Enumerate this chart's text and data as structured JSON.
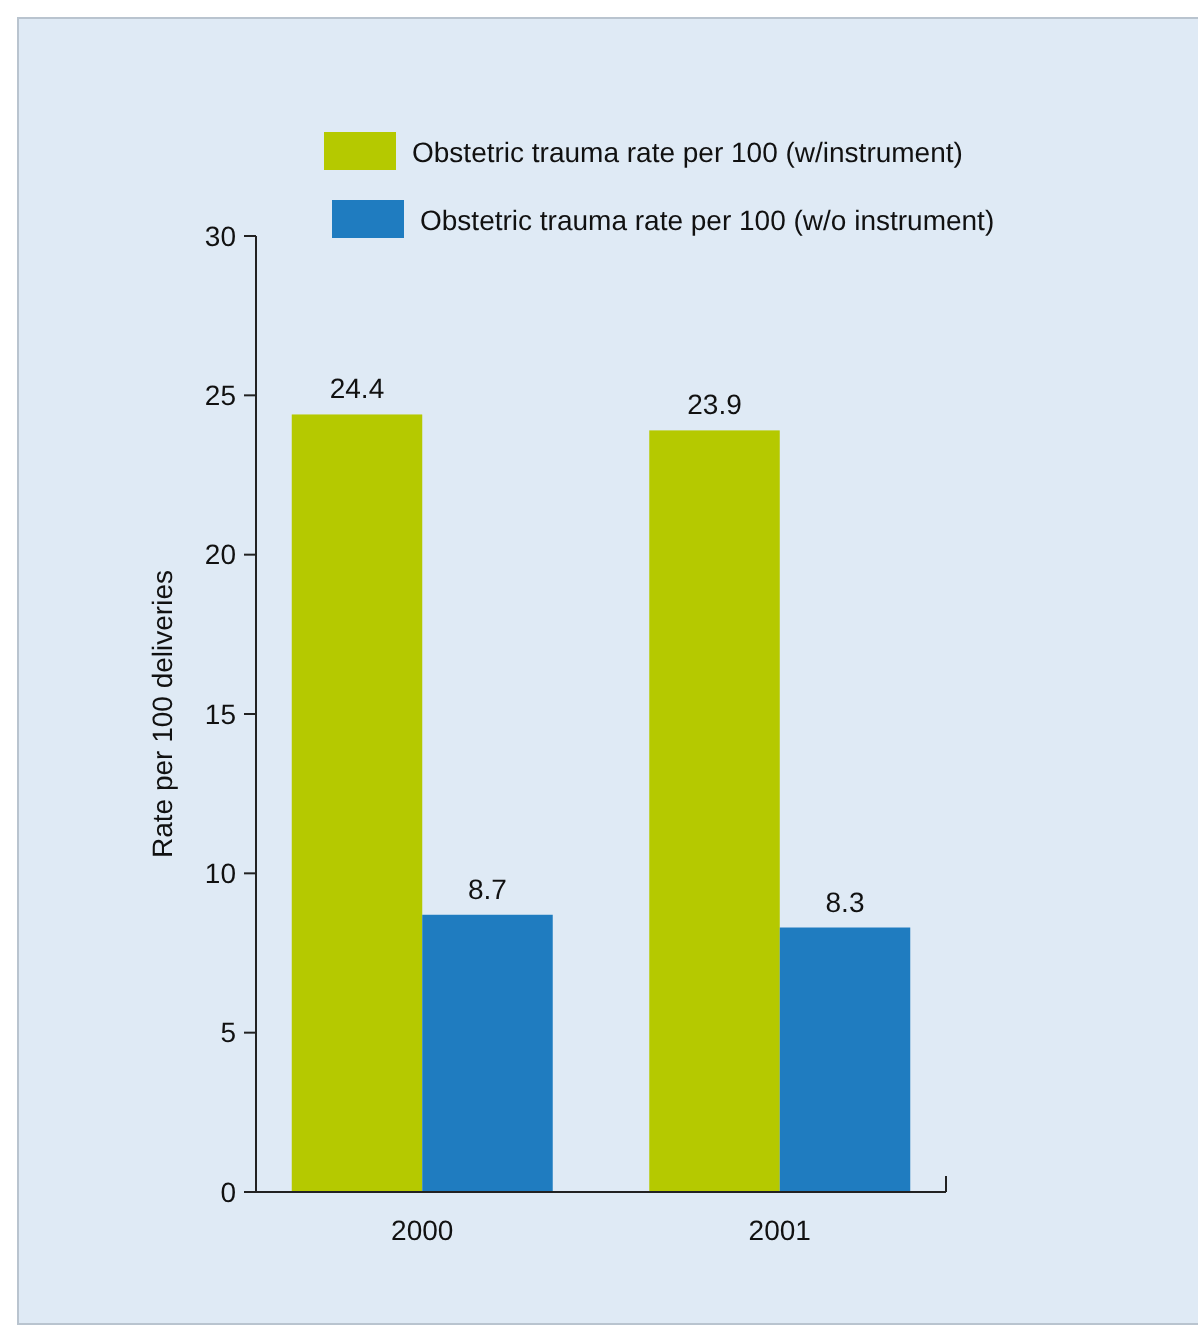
{
  "chart_data": {
    "type": "bar",
    "ylabel": "Rate per 100 deliveries",
    "categories": [
      "2000",
      "2001"
    ],
    "series": [
      {
        "name": "Obstetric trauma rate per 100 (w/instrument)",
        "color": "#b5c900",
        "values": [
          24.4,
          23.9
        ]
      },
      {
        "name": "Obstetric trauma rate per 100 (w/o instrument)",
        "color": "#1f7cc0",
        "values": [
          8.7,
          8.3
        ]
      }
    ],
    "ylim": [
      0,
      30
    ],
    "yticks": [
      0,
      5,
      10,
      15,
      20,
      25,
      30
    ],
    "data_labels": true,
    "legend": "top",
    "grid": false
  }
}
